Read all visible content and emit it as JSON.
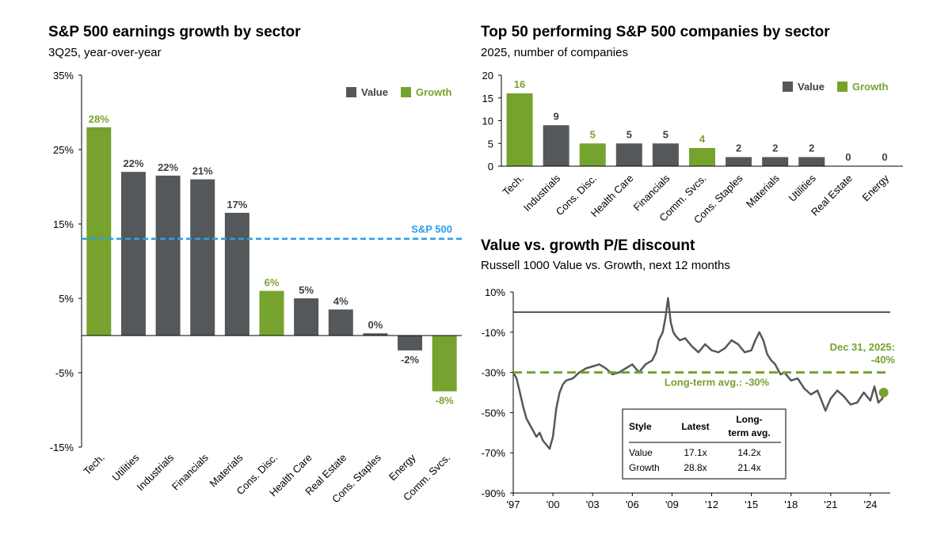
{
  "colors": {
    "value": "#55585b",
    "growth": "#76a22e",
    "sp500": "#2a9fe8",
    "axis": "#000000"
  },
  "legend": {
    "value_label": "Value",
    "growth_label": "Growth"
  },
  "chart_data": [
    {
      "id": "earnings",
      "type": "bar",
      "title": "S&P 500 earnings growth by sector",
      "subtitle": "3Q25, year-over-year",
      "categories": [
        "Tech.",
        "Utilities",
        "Industrials",
        "Financials",
        "Materials",
        "Cons. Disc.",
        "Health Care",
        "Real Estate",
        "Cons. Staples",
        "Energy",
        "Comm. Svcs."
      ],
      "values": [
        28,
        22,
        21.5,
        21,
        16.5,
        6,
        5,
        3.5,
        0.3,
        -2,
        -7.5
      ],
      "value_labels": [
        "28%",
        "22%",
        "22%",
        "21%",
        "17%",
        "6%",
        "5%",
        "4%",
        "0%",
        "-2%",
        "-8%"
      ],
      "styles": [
        "growth",
        "value",
        "value",
        "value",
        "value",
        "growth",
        "value",
        "value",
        "value",
        "value",
        "growth"
      ],
      "reference_line": {
        "label": "S&P 500",
        "value": 13
      },
      "ylim": [
        -15,
        35
      ],
      "yticks": [
        35,
        25,
        15,
        5,
        -5,
        -15
      ],
      "ytick_labels": [
        "35%",
        "25%",
        "15%",
        "5%",
        "-5%",
        "-15%"
      ]
    },
    {
      "id": "top50",
      "type": "bar",
      "title": "Top 50 performing S&P 500 companies by sector",
      "subtitle": "2025, number of companies",
      "categories": [
        "Tech.",
        "Industrials",
        "Cons. Disc.",
        "Health Care",
        "Financials",
        "Comm. Svcs.",
        "Cons. Staples",
        "Materials",
        "Utilities",
        "Real Estate",
        "Energy"
      ],
      "values": [
        16,
        9,
        5,
        5,
        5,
        4,
        2,
        2,
        2,
        0,
        0
      ],
      "value_labels": [
        "16",
        "9",
        "5",
        "5",
        "5",
        "4",
        "2",
        "2",
        "2",
        "0",
        "0"
      ],
      "styles": [
        "growth",
        "value",
        "growth",
        "value",
        "value",
        "growth",
        "value",
        "value",
        "value",
        "value",
        "value"
      ],
      "ylim": [
        0,
        20
      ],
      "yticks": [
        20,
        15,
        10,
        5,
        0
      ],
      "ytick_labels": [
        "20",
        "15",
        "10",
        "5",
        "0"
      ]
    },
    {
      "id": "pe_discount",
      "type": "line",
      "title": "Value vs. growth P/E discount",
      "subtitle": "Russell 1000 Value vs. Growth, next 12 months",
      "series": [
        {
          "name": "Value vs. growth P/E discount",
          "x": [
            1997.0,
            1997.25,
            1997.5,
            1997.75,
            1998.0,
            1998.25,
            1998.5,
            1998.75,
            1999.0,
            1999.25,
            1999.5,
            1999.75,
            2000.0,
            2000.25,
            2000.5,
            2000.75,
            2001.0,
            2001.5,
            2002.0,
            2002.5,
            2003.0,
            2003.5,
            2004.0,
            2004.5,
            2005.0,
            2005.5,
            2006.0,
            2006.5,
            2007.0,
            2007.5,
            2007.8,
            2008.0,
            2008.3,
            2008.5,
            2008.7,
            2008.9,
            2009.1,
            2009.3,
            2009.6,
            2010.0,
            2010.5,
            2011.0,
            2011.5,
            2012.0,
            2012.5,
            2013.0,
            2013.5,
            2014.0,
            2014.5,
            2015.0,
            2015.3,
            2015.6,
            2015.9,
            2016.2,
            2016.5,
            2016.8,
            2017.2,
            2017.5,
            2018.0,
            2018.5,
            2019.0,
            2019.5,
            2020.0,
            2020.3,
            2020.6,
            2021.0,
            2021.5,
            2022.0,
            2022.5,
            2023.0,
            2023.5,
            2024.0,
            2024.3,
            2024.6,
            2024.9,
            2025.0
          ],
          "y": [
            -30,
            -33,
            -40,
            -47,
            -53,
            -56,
            -59,
            -62,
            -60,
            -64,
            -66,
            -68,
            -62,
            -48,
            -40,
            -36,
            -34,
            -33,
            -30,
            -28,
            -27,
            -26,
            -28,
            -31,
            -30,
            -28,
            -26,
            -30,
            -26,
            -24,
            -20,
            -14,
            -10,
            -3,
            7,
            -5,
            -10,
            -12,
            -14,
            -13,
            -17,
            -20,
            -16,
            -19,
            -20,
            -18,
            -14,
            -16,
            -20,
            -19,
            -14,
            -10,
            -14,
            -21,
            -24,
            -26,
            -31,
            -30,
            -34,
            -33,
            -38,
            -41,
            -39,
            -44,
            -49,
            -43,
            -39,
            -42,
            -46,
            -45,
            -40,
            -44,
            -37,
            -45,
            -43,
            -40
          ]
        }
      ],
      "ylim": [
        -90,
        10
      ],
      "yticks": [
        10,
        -10,
        -30,
        -50,
        -70,
        -90
      ],
      "ytick_labels": [
        "10%",
        "-10%",
        "-30%",
        "-50%",
        "-70%",
        "-90%"
      ],
      "xticks": [
        1997,
        2000,
        2003,
        2006,
        2009,
        2012,
        2015,
        2018,
        2021,
        2024
      ],
      "xtick_labels": [
        "'97",
        "'00",
        "'03",
        "'06",
        "'09",
        "'12",
        "'15",
        "'18",
        "'21",
        "'24"
      ],
      "long_term_avg": {
        "value": -30,
        "label": "Long-term avg.: -30%"
      },
      "latest": {
        "value": -40,
        "label_line1": "Dec 31, 2025:",
        "label_line2": "-40%"
      },
      "table": {
        "headers": [
          "Style",
          "Latest",
          "Long-",
          "term avg."
        ],
        "rows": [
          [
            "Value",
            "17.1x",
            "14.2x"
          ],
          [
            "Growth",
            "28.8x",
            "21.4x"
          ]
        ]
      }
    }
  ]
}
